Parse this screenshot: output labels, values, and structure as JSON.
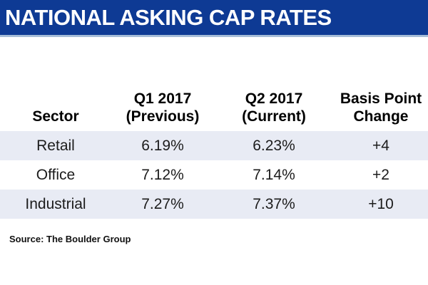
{
  "banner": {
    "title": "NATIONAL ASKING CAP RATES"
  },
  "table": {
    "headers": [
      {
        "text": "Sector"
      },
      {
        "text": "Q1 2017\n(Previous)"
      },
      {
        "text": "Q2 2017\n(Current)"
      },
      {
        "text": "Basis Point\nChange"
      }
    ],
    "rows": [
      {
        "sector": "Retail",
        "q1": "6.19%",
        "q2": "6.23%",
        "bp": "+4"
      },
      {
        "sector": "Office",
        "q1": "7.12%",
        "q2": "7.14%",
        "bp": "+2"
      },
      {
        "sector": "Industrial",
        "q1": "7.27%",
        "q2": "7.37%",
        "bp": "+10"
      }
    ]
  },
  "footer": {
    "source": "Source: The Boulder Group"
  },
  "colors": {
    "banner_background": "#0e3a94",
    "banner_underline": "#a6bdd7",
    "row_stripe": "#e8ebf4",
    "title_text": "#ffffff",
    "body_text": "#1c1c1c"
  },
  "chart_data": {
    "type": "table",
    "title": "NATIONAL ASKING CAP RATES",
    "columns": [
      "Sector",
      "Q1 2017 (Previous)",
      "Q2 2017 (Current)",
      "Basis Point Change"
    ],
    "rows": [
      [
        "Retail",
        "6.19%",
        "6.23%",
        "+4"
      ],
      [
        "Office",
        "7.12%",
        "7.14%",
        "+2"
      ],
      [
        "Industrial",
        "7.27%",
        "7.37%",
        "+10"
      ]
    ],
    "numeric": {
      "categories": [
        "Retail",
        "Office",
        "Industrial"
      ],
      "series": [
        {
          "name": "Q1 2017 (Previous)",
          "values": [
            6.19,
            7.12,
            7.27
          ],
          "unit": "%"
        },
        {
          "name": "Q2 2017 (Current)",
          "values": [
            6.23,
            7.14,
            7.37
          ],
          "unit": "%"
        },
        {
          "name": "Basis Point Change",
          "values": [
            4,
            2,
            10
          ],
          "unit": "bps"
        }
      ]
    },
    "source": "Source: The Boulder Group"
  }
}
